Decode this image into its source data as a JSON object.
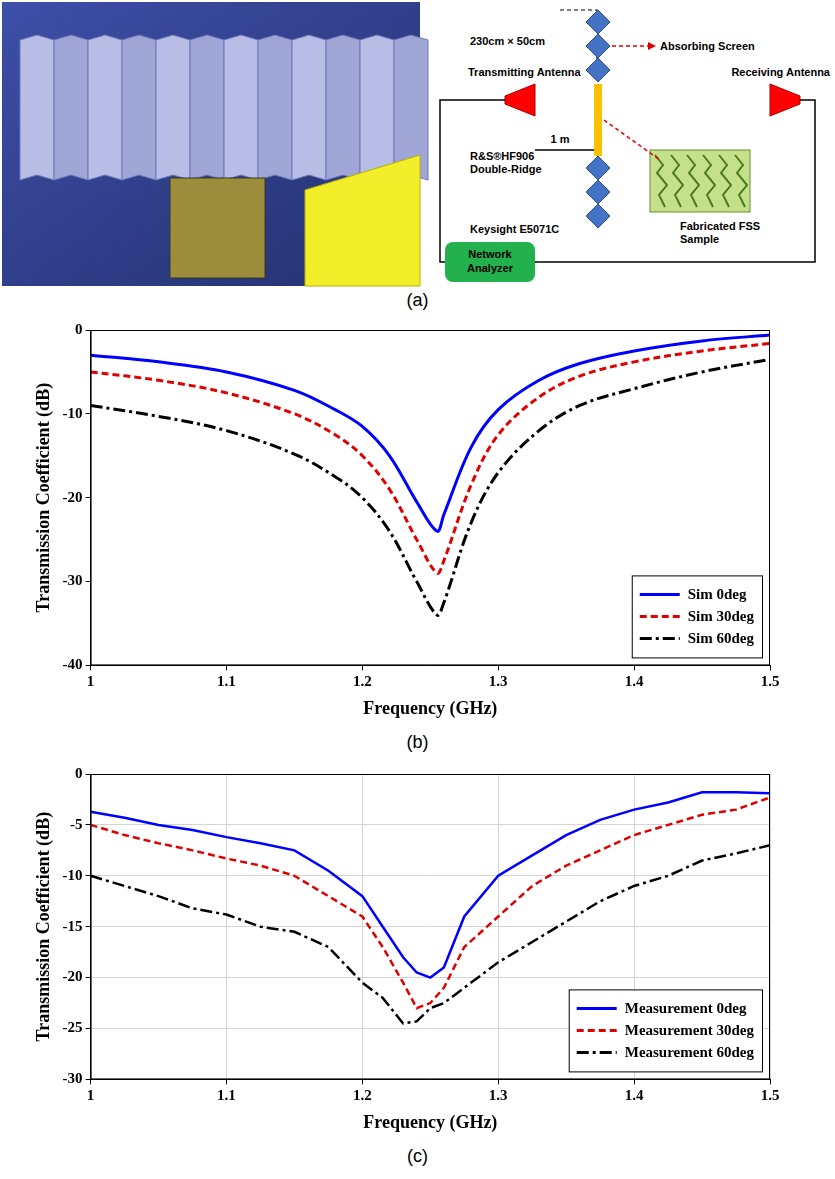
{
  "figure_a": {
    "caption": "(a)",
    "screen_size": "230cm × 50cm",
    "screen_label": "Absorbing Screen",
    "tx_label": "Transmitting Antenna",
    "rx_label": "Receiving Antenna",
    "distance": "1 m",
    "antenna_model": [
      "R&S®HF906",
      "Double-Ridge"
    ],
    "analyzer_model": "Keysight E5071C",
    "sample_label": [
      "Fabricated FSS",
      "Sample"
    ],
    "analyzer_label": [
      "Network",
      "Analyzer"
    ]
  },
  "chart_data": [
    {
      "type": "line",
      "caption": "(b)",
      "x_label": "Frequency (GHz)",
      "y_label": "Transmission Coefficient (dB)",
      "x": [
        1.0,
        1.05,
        1.1,
        1.15,
        1.18,
        1.2,
        1.22,
        1.24,
        1.255,
        1.26,
        1.28,
        1.3,
        1.33,
        1.36,
        1.4,
        1.45,
        1.5
      ],
      "series": [
        {
          "name": "Sim 0deg",
          "color": "#0000ff",
          "line_style": "solid",
          "values": [
            -3,
            -3.8,
            -5,
            -7.2,
            -9.5,
            -11.5,
            -15,
            -20.5,
            -24,
            -22,
            -14,
            -9.5,
            -6,
            -4,
            -2.5,
            -1.3,
            -0.6
          ]
        },
        {
          "name": "Sim 30deg",
          "color": "#e00000",
          "line_style": "dashed",
          "values": [
            -5,
            -6,
            -7.5,
            -10,
            -12.5,
            -15,
            -19,
            -25,
            -29,
            -27.5,
            -18.5,
            -12.5,
            -8,
            -5.5,
            -3.8,
            -2.5,
            -1.6
          ]
        },
        {
          "name": "Sim 60deg",
          "color": "#000000",
          "line_style": "dashdot",
          "values": [
            -9,
            -10.3,
            -12,
            -14.8,
            -17.5,
            -20,
            -24,
            -30,
            -34,
            -32.5,
            -23,
            -17,
            -12,
            -9,
            -7,
            -5,
            -3.5
          ]
        }
      ],
      "xlim": [
        1,
        1.5
      ],
      "xticks": [
        1,
        1.1,
        1.2,
        1.3,
        1.4,
        1.5
      ],
      "ylim": [
        -40,
        0
      ],
      "yticks": [
        -40,
        -30,
        -20,
        -10,
        0
      ],
      "grid": false,
      "legend": "lower right"
    },
    {
      "type": "line",
      "caption": "(c)",
      "x_label": "Frequency (GHz)",
      "y_label": "Transmission Coefficient (dB)",
      "x": [
        1.0,
        1.025,
        1.05,
        1.075,
        1.1,
        1.125,
        1.15,
        1.175,
        1.2,
        1.215,
        1.23,
        1.24,
        1.25,
        1.26,
        1.275,
        1.3,
        1.325,
        1.35,
        1.375,
        1.4,
        1.425,
        1.45,
        1.475,
        1.5
      ],
      "series": [
        {
          "name": "Measurement 0deg",
          "color": "#0000ff",
          "line_style": "solid",
          "values": [
            -3.7,
            -4.3,
            -5,
            -5.5,
            -6.2,
            -6.8,
            -7.5,
            -9.5,
            -12,
            -15,
            -18,
            -19.5,
            -20,
            -19,
            -14,
            -10,
            -8,
            -6,
            -4.5,
            -3.5,
            -2.8,
            -1.8,
            -1.8,
            -1.9
          ]
        },
        {
          "name": "Measurement 30deg",
          "color": "#e00000",
          "line_style": "dashed",
          "values": [
            -5,
            -6,
            -6.8,
            -7.5,
            -8.3,
            -9,
            -10,
            -12,
            -14,
            -17,
            -20.5,
            -23,
            -22.5,
            -21,
            -17,
            -14,
            -11,
            -9,
            -7.5,
            -6,
            -5,
            -4,
            -3.5,
            -2.3
          ]
        },
        {
          "name": "Measurement 60deg",
          "color": "#000000",
          "line_style": "dashdot",
          "values": [
            -10,
            -11,
            -12,
            -13.2,
            -13.8,
            -15,
            -15.5,
            -17,
            -20.5,
            -22,
            -24.5,
            -24.3,
            -23,
            -22.5,
            -21,
            -18.5,
            -16.5,
            -14.5,
            -12.5,
            -11,
            -10,
            -8.5,
            -7.8,
            -7
          ]
        }
      ],
      "xlim": [
        1,
        1.5
      ],
      "xticks": [
        1,
        1.1,
        1.2,
        1.3,
        1.4,
        1.5
      ],
      "ylim": [
        -30,
        0
      ],
      "yticks": [
        -30,
        -25,
        -20,
        -15,
        -10,
        -5,
        0
      ],
      "grid": true,
      "legend": "lower right"
    }
  ]
}
